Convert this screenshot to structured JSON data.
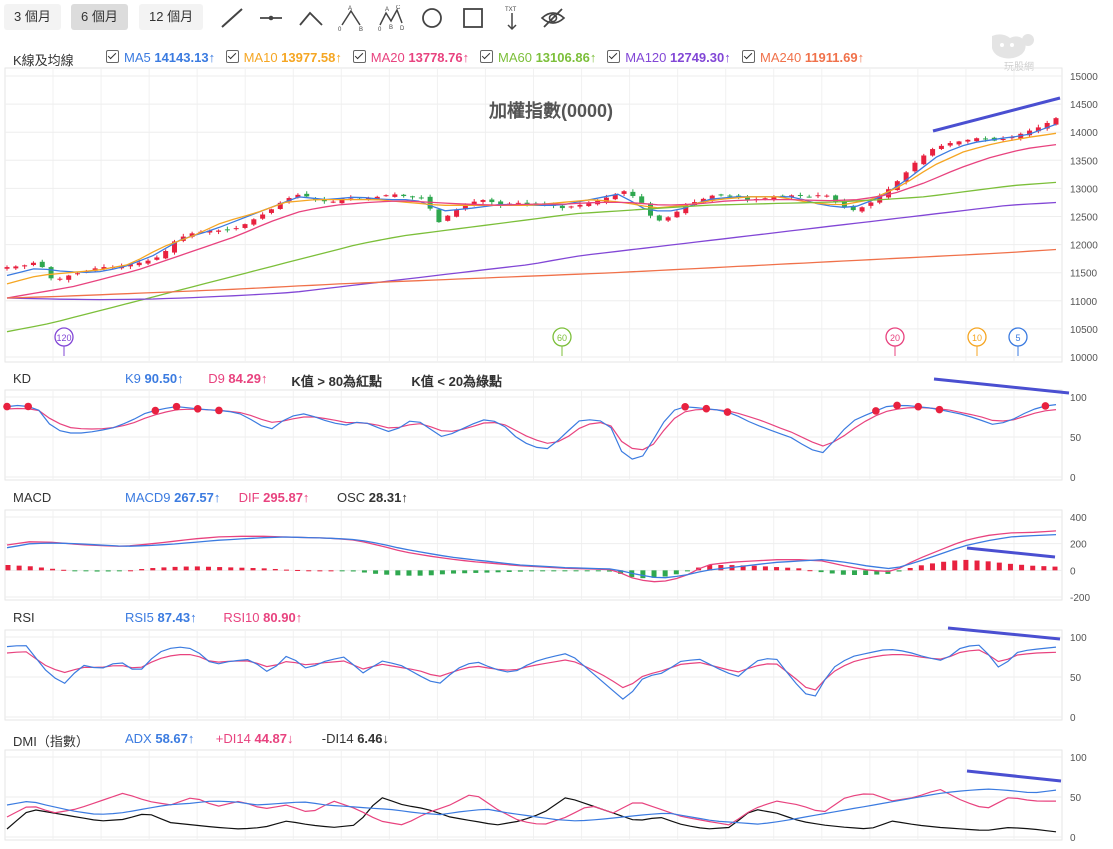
{
  "toolbar": {
    "periods": [
      {
        "label": "3 個月",
        "active": false
      },
      {
        "label": "6 個月",
        "active": true
      },
      {
        "label": "12 個月",
        "active": false
      }
    ],
    "tools": [
      "trendline-icon",
      "horizontal-line-icon",
      "angle-line-icon",
      "abc-pattern-icon",
      "abcd-pattern-icon",
      "circle-icon",
      "rectangle-icon",
      "text-marker-icon",
      "hide-eye-icon"
    ]
  },
  "logo_text": "玩股網",
  "colors": {
    "up": "#e8213f",
    "down": "#2fa84f",
    "ma5": "#3b7be0",
    "ma10": "#f5a623",
    "ma20": "#e8437f",
    "ma60": "#7cbf3a",
    "ma120": "#8247d6",
    "ma240": "#f0714a",
    "trend": "#4a4fd1",
    "dif": "#e8437f",
    "macd": "#3b7be0",
    "black": "#111111"
  },
  "panels": {
    "kline": {
      "title": "K線及均線",
      "chart_title": "加權指數(0000)",
      "legend": [
        {
          "name": "MA5",
          "value": "14143.13",
          "arrow": "↑",
          "color": "#3b7be0"
        },
        {
          "name": "MA10",
          "value": "13977.58",
          "arrow": "↑",
          "color": "#f5a623"
        },
        {
          "name": "MA20",
          "value": "13778.76",
          "arrow": "↑",
          "color": "#e8437f"
        },
        {
          "name": "MA60",
          "value": "13106.86",
          "arrow": "↑",
          "color": "#7cbf3a"
        },
        {
          "name": "MA120",
          "value": "12749.30",
          "arrow": "↑",
          "color": "#8247d6"
        },
        {
          "name": "MA240",
          "value": "11911.69",
          "arrow": "↑",
          "color": "#f0714a"
        }
      ],
      "y_ticks": [
        "15000",
        "14500",
        "14000",
        "13500",
        "13000",
        "12500",
        "12000",
        "11500",
        "11000",
        "10500",
        "10000"
      ],
      "period_markers": [
        {
          "label": "120",
          "color": "#8247d6"
        },
        {
          "label": "60",
          "color": "#7cbf3a"
        },
        {
          "label": "20",
          "color": "#e8437f"
        },
        {
          "label": "10",
          "color": "#f5a623"
        },
        {
          "label": "5",
          "color": "#3b7be0"
        }
      ]
    },
    "kd": {
      "title": "KD",
      "legend": [
        {
          "name": "K9",
          "value": "90.50",
          "arrow": "↑",
          "color": "#3b7be0"
        },
        {
          "name": "D9",
          "value": "84.29",
          "arrow": "↑",
          "color": "#e8437f"
        }
      ],
      "notes": [
        "K值 > 80為紅點",
        "K值 < 20為綠點"
      ],
      "y_ticks": [
        "100",
        "50",
        "0"
      ]
    },
    "macd": {
      "title": "MACD",
      "legend": [
        {
          "name": "MACD9",
          "value": "267.57",
          "arrow": "↑",
          "color": "#3b7be0"
        },
        {
          "name": "DIF",
          "value": "295.87",
          "arrow": "↑",
          "color": "#e8437f"
        },
        {
          "name": "OSC",
          "value": "28.31",
          "arrow": "↑",
          "color": "#333333"
        }
      ],
      "y_ticks": [
        "400",
        "200",
        "0",
        "-200"
      ]
    },
    "rsi": {
      "title": "RSI",
      "legend": [
        {
          "name": "RSI5",
          "value": "87.43",
          "arrow": "↑",
          "color": "#3b7be0"
        },
        {
          "name": "RSI10",
          "value": "80.90",
          "arrow": "↑",
          "color": "#e8437f"
        }
      ],
      "y_ticks": [
        "100",
        "50",
        "0"
      ]
    },
    "dmi": {
      "title": "DMI（指數）",
      "legend": [
        {
          "name": "ADX",
          "value": "58.67",
          "arrow": "↑",
          "color": "#3b7be0"
        },
        {
          "name": "+DI14",
          "value": "44.87",
          "arrow": "↓",
          "color": "#e8437f"
        },
        {
          "name": "-DI14",
          "value": "6.46",
          "arrow": "↓",
          "color": "#333333"
        }
      ],
      "y_ticks": [
        "100",
        "50",
        "0"
      ]
    }
  },
  "chart_data": [
    {
      "type": "candlestick",
      "title": "加權指數(0000)",
      "ylim": [
        10000,
        15000
      ],
      "grid": true,
      "close_anchors": [
        11600,
        11620,
        11700,
        11350,
        11450,
        11520,
        11600,
        11600,
        11650,
        11700,
        11800,
        12100,
        12200,
        12250,
        12250,
        12300,
        12450,
        12600,
        12800,
        12900,
        12800,
        12750,
        12850,
        12800,
        12850,
        12900,
        12850,
        12820,
        12400,
        12600,
        12750,
        12800,
        12700,
        12750,
        12700,
        12720,
        12650,
        12700,
        12750,
        12850,
        12950,
        12800,
        12400,
        12500,
        12700,
        12800,
        12900,
        12850,
        12800,
        12820,
        12850,
        12880,
        12850,
        12900,
        12700,
        12600,
        12750,
        12950,
        13200,
        13500,
        13700,
        13800,
        13850,
        13900,
        13850,
        13900,
        14000,
        14100,
        14250
      ],
      "ma": {
        "MA5": [
          11450,
          11580,
          11520,
          11500,
          11600,
          11800,
          12100,
          12250,
          12450,
          12650,
          12850,
          12800,
          12850,
          12800,
          12800,
          12600,
          12650,
          12720,
          12700,
          12700,
          12800,
          12900,
          12600,
          12600,
          12800,
          12850,
          12850,
          12850,
          12700,
          12650,
          12850,
          13200,
          13600,
          13800,
          13880,
          13950,
          14140
        ],
        "MA10": [
          11300,
          11450,
          11500,
          11550,
          11650,
          11950,
          12150,
          12400,
          12550,
          12750,
          12800,
          12800,
          12800,
          12750,
          12700,
          12700,
          12700,
          12700,
          12750,
          12800,
          12750,
          12650,
          12700,
          12800,
          12850,
          12850,
          12750,
          12700,
          12800,
          13050,
          13400,
          13650,
          13800,
          13900,
          13980
        ],
        "MA20": [
          11050,
          11150,
          11250,
          11400,
          11550,
          11750,
          11950,
          12150,
          12400,
          12600,
          12700,
          12750,
          12780,
          12750,
          12720,
          12700,
          12720,
          12720,
          12750,
          12750,
          12700,
          12720,
          12780,
          12800,
          12800,
          12780,
          12800,
          12900,
          13100,
          13350,
          13550,
          13700,
          13780
        ],
        "MA60": [
          10450,
          10600,
          10800,
          11000,
          11200,
          11400,
          11600,
          11800,
          12000,
          12150,
          12250,
          12350,
          12450,
          12550,
          12600,
          12650,
          12700,
          12720,
          12740,
          12760,
          12800,
          12850,
          12950,
          13050,
          13107
        ],
        "MA120": [
          11050,
          11030,
          11020,
          11030,
          11060,
          11100,
          11150,
          11250,
          11350,
          11450,
          11550,
          11650,
          11800,
          11900,
          12000,
          12100,
          12200,
          12300,
          12400,
          12500,
          12600,
          12700,
          12749
        ],
        "MA240": [
          11050,
          11080,
          11120,
          11160,
          11200,
          11250,
          11300,
          11340,
          11380,
          11420,
          11460,
          11500,
          11550,
          11600,
          11650,
          11700,
          11750,
          11800,
          11850,
          11912
        ]
      }
    },
    {
      "type": "line",
      "title": "KD",
      "ylim": [
        0,
        100
      ],
      "series": [
        {
          "name": "K9",
          "values": [
            88,
            90,
            85,
            60,
            55,
            55,
            58,
            62,
            70,
            80,
            85,
            88,
            86,
            84,
            83,
            80,
            70,
            58,
            72,
            80,
            75,
            68,
            65,
            70,
            62,
            55,
            70,
            68,
            50,
            55,
            65,
            72,
            68,
            50,
            38,
            35,
            50,
            70,
            72,
            68,
            25,
            20,
            50,
            82,
            88,
            86,
            84,
            80,
            70,
            62,
            55,
            48,
            35,
            30,
            55,
            72,
            80,
            88,
            90,
            88,
            86,
            82,
            78,
            72,
            65,
            70,
            80,
            88,
            90.5
          ]
        },
        {
          "name": "D9",
          "values": [
            85,
            86,
            84,
            70,
            62,
            60,
            60,
            62,
            66,
            74,
            80,
            84,
            85,
            84,
            83,
            81,
            76,
            68,
            70,
            75,
            75,
            72,
            68,
            68,
            65,
            60,
            65,
            67,
            58,
            57,
            62,
            68,
            68,
            58,
            48,
            42,
            45,
            60,
            68,
            68,
            40,
            32,
            42,
            70,
            82,
            85,
            84,
            82,
            76,
            70,
            62,
            55,
            45,
            38,
            48,
            62,
            74,
            82,
            86,
            87,
            86,
            84,
            80,
            76,
            70,
            70,
            76,
            82,
            84.29
          ]
        }
      ]
    },
    {
      "type": "bar+line",
      "title": "MACD",
      "ylim": [
        -200,
        400
      ],
      "series": [
        {
          "name": "MACD9",
          "values": [
            170,
            200,
            205,
            200,
            190,
            180,
            185,
            195,
            210,
            225,
            235,
            245,
            250,
            245,
            240,
            230,
            200,
            160,
            130,
            100,
            80,
            60,
            40,
            30,
            20,
            15,
            10,
            -30,
            -60,
            -40,
            0,
            20,
            40,
            60,
            70,
            80,
            60,
            30,
            10,
            60,
            120,
            180,
            220,
            250,
            260,
            268
          ]
        },
        {
          "name": "DIF",
          "values": [
            190,
            215,
            210,
            195,
            185,
            180,
            195,
            215,
            235,
            250,
            255,
            255,
            250,
            245,
            240,
            225,
            185,
            140,
            110,
            85,
            65,
            50,
            35,
            25,
            15,
            10,
            5,
            -70,
            -90,
            -50,
            40,
            60,
            70,
            80,
            80,
            70,
            30,
            0,
            -10,
            80,
            150,
            220,
            260,
            280,
            285,
            296
          ]
        },
        {
          "name": "OSC",
          "values": [
            40,
            30,
            10,
            -5,
            -10,
            -5,
            15,
            25,
            30,
            25,
            20,
            15,
            5,
            0,
            0,
            -10,
            -30,
            -40,
            -40,
            -25,
            -20,
            -15,
            -10,
            -5,
            -5,
            -5,
            -10,
            -60,
            -55,
            -20,
            40,
            40,
            35,
            25,
            15,
            -15,
            -35,
            -35,
            -25,
            30,
            60,
            80,
            70,
            50,
            35,
            28
          ]
        }
      ]
    },
    {
      "type": "line",
      "title": "RSI",
      "ylim": [
        0,
        100
      ],
      "series": [
        {
          "name": "RSI5",
          "values": [
            88,
            90,
            60,
            40,
            65,
            60,
            70,
            55,
            80,
            88,
            85,
            65,
            70,
            72,
            55,
            78,
            60,
            70,
            75,
            55,
            70,
            65,
            52,
            40,
            60,
            70,
            60,
            55,
            68,
            75,
            80,
            60,
            40,
            20,
            50,
            55,
            70,
            72,
            60,
            50,
            70,
            75,
            45,
            20,
            60,
            75,
            80,
            85,
            82,
            75,
            70,
            88,
            90,
            60,
            82,
            85,
            87.43
          ]
        },
        {
          "name": "RSI10",
          "values": [
            80,
            82,
            65,
            55,
            62,
            62,
            65,
            60,
            72,
            78,
            78,
            68,
            70,
            70,
            62,
            70,
            65,
            68,
            70,
            60,
            66,
            62,
            58,
            50,
            58,
            64,
            60,
            58,
            64,
            68,
            72,
            62,
            50,
            35,
            52,
            58,
            66,
            68,
            62,
            56,
            64,
            68,
            50,
            30,
            55,
            68,
            74,
            78,
            78,
            74,
            72,
            82,
            84,
            68,
            78,
            80,
            80.9
          ]
        }
      ]
    },
    {
      "type": "line",
      "title": "DMI（指數）",
      "ylim": [
        0,
        100
      ],
      "series": [
        {
          "name": "ADX",
          "values": [
            40,
            45,
            38,
            32,
            28,
            30,
            35,
            40,
            42,
            45,
            44,
            40,
            42,
            44,
            40,
            38,
            36,
            34,
            30,
            28,
            32,
            35,
            30,
            26,
            22,
            20,
            22,
            25,
            28,
            30,
            25,
            20,
            18,
            16,
            20,
            25,
            30,
            35,
            40,
            45,
            50,
            55,
            58,
            60,
            58,
            55,
            58.67
          ]
        },
        {
          "name": "+DI14",
          "values": [
            25,
            40,
            30,
            35,
            45,
            55,
            45,
            40,
            50,
            38,
            45,
            35,
            40,
            30,
            45,
            35,
            20,
            15,
            30,
            40,
            55,
            35,
            20,
            15,
            25,
            40,
            30,
            45,
            35,
            25,
            20,
            15,
            35,
            45,
            40,
            30,
            50,
            55,
            45,
            50,
            60,
            45,
            35,
            50,
            45,
            44.87
          ]
        },
        {
          "name": "-DI14",
          "values": [
            10,
            35,
            30,
            25,
            20,
            22,
            30,
            18,
            15,
            12,
            10,
            12,
            20,
            15,
            12,
            15,
            50,
            40,
            35,
            25,
            20,
            15,
            20,
            30,
            50,
            40,
            30,
            20,
            25,
            15,
            10,
            12,
            35,
            30,
            20,
            15,
            12,
            10,
            20,
            15,
            12,
            10,
            8,
            12,
            10,
            6.46
          ]
        }
      ]
    }
  ]
}
